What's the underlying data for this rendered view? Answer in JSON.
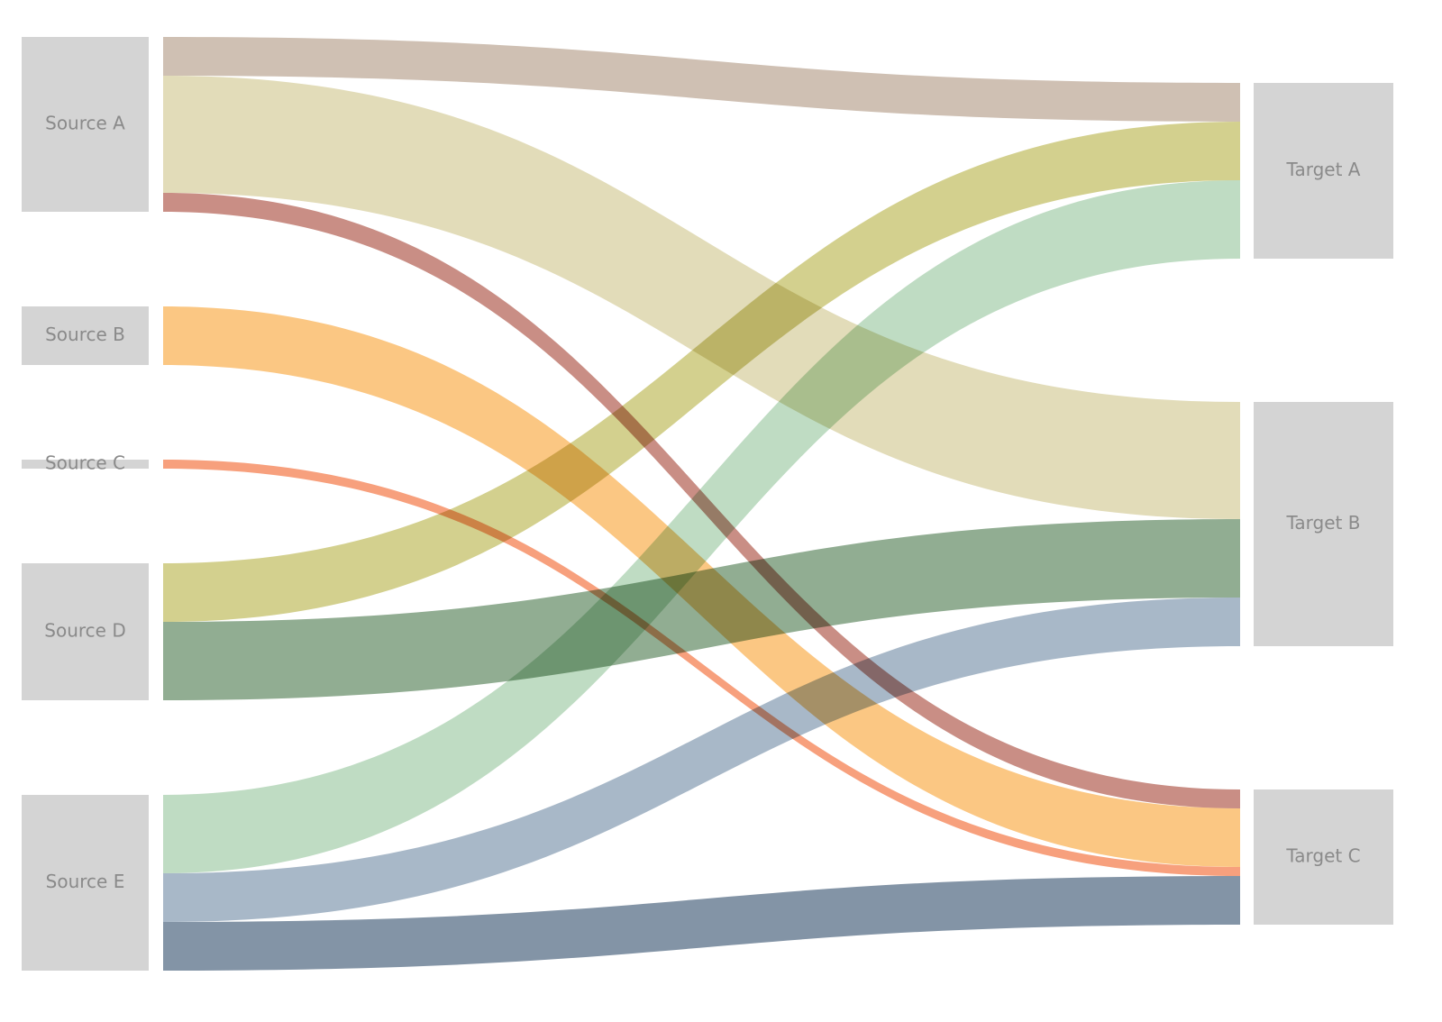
{
  "chart_data": {
    "type": "sankey",
    "sources": [
      "Source A",
      "Source B",
      "Source C",
      "Source D",
      "Source E"
    ],
    "targets": [
      "Target A",
      "Target B",
      "Target C"
    ],
    "links": [
      {
        "source": "Source A",
        "target": "Target A",
        "value": 43,
        "color": "#cfc0b3"
      },
      {
        "source": "Source A",
        "target": "Target B",
        "value": 130,
        "color": "#e2dcb9"
      },
      {
        "source": "Source A",
        "target": "Target C",
        "value": 21,
        "color": "#c98e85"
      },
      {
        "source": "Source B",
        "target": "Target C",
        "value": 65,
        "color": "#fbc783"
      },
      {
        "source": "Source C",
        "target": "Target C",
        "value": 10,
        "color": "#f7a07d"
      },
      {
        "source": "Source D",
        "target": "Target A",
        "value": 65,
        "color": "#d3d08e"
      },
      {
        "source": "Source D",
        "target": "Target B",
        "value": 87,
        "color": "#91ad92"
      },
      {
        "source": "Source E",
        "target": "Target A",
        "value": 87,
        "color": "#bfdcc3"
      },
      {
        "source": "Source E",
        "target": "Target B",
        "value": 54,
        "color": "#a8b8c8"
      },
      {
        "source": "Source E",
        "target": "Target C",
        "value": 54,
        "color": "#8394a6"
      }
    ],
    "node_color": "#d4d4d4",
    "label_color": "#8a8a8a"
  }
}
